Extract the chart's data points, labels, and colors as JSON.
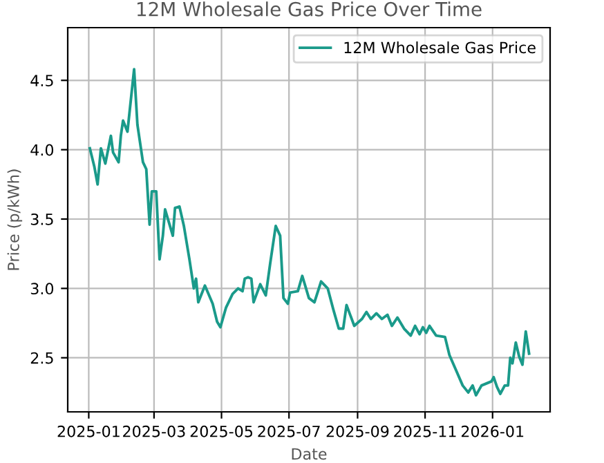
{
  "chart_data": {
    "type": "line",
    "title": "12M Wholesale Gas Price Over Time",
    "xlabel": "Date",
    "ylabel": "Price (p/kWh)",
    "x": [
      "2025-01-02",
      "2025-01-06",
      "2025-01-09",
      "2025-01-12",
      "2025-01-16",
      "2025-01-21",
      "2025-01-23",
      "2025-01-28",
      "2025-01-30",
      "2025-02-01",
      "2025-02-05",
      "2025-02-11",
      "2025-02-14",
      "2025-02-19",
      "2025-02-22",
      "2025-02-25",
      "2025-02-27",
      "2025-03-03",
      "2025-03-06",
      "2025-03-09",
      "2025-03-11",
      "2025-03-18",
      "2025-03-20",
      "2025-03-24",
      "2025-03-28",
      "2025-04-02",
      "2025-04-06",
      "2025-04-08",
      "2025-04-10",
      "2025-04-16",
      "2025-04-23",
      "2025-04-27",
      "2025-04-30",
      "2025-05-05",
      "2025-05-11",
      "2025-05-16",
      "2025-05-20",
      "2025-05-22",
      "2025-05-25",
      "2025-05-28",
      "2025-05-30",
      "2025-06-05",
      "2025-06-10",
      "2025-06-14",
      "2025-06-19",
      "2025-06-23",
      "2025-06-26",
      "2025-06-30",
      "2025-07-02",
      "2025-07-09",
      "2025-07-13",
      "2025-07-19",
      "2025-07-24",
      "2025-07-30",
      "2025-08-05",
      "2025-08-10",
      "2025-08-15",
      "2025-08-19",
      "2025-08-22",
      "2025-08-29",
      "2025-09-05",
      "2025-09-09",
      "2025-09-13",
      "2025-09-18",
      "2025-09-23",
      "2025-09-28",
      "2025-10-02",
      "2025-10-07",
      "2025-10-13",
      "2025-10-19",
      "2025-10-23",
      "2025-10-27",
      "2025-10-30",
      "2025-11-02",
      "2025-11-05",
      "2025-11-11",
      "2025-11-19",
      "2025-11-23",
      "2025-11-29",
      "2025-12-05",
      "2025-12-10",
      "2025-12-14",
      "2025-12-17",
      "2025-12-22",
      "2025-12-31",
      "2026-01-02",
      "2026-01-05",
      "2026-01-08",
      "2026-01-12",
      "2026-01-15",
      "2026-01-17",
      "2026-01-19",
      "2026-01-22",
      "2026-01-25",
      "2026-01-28",
      "2026-01-31",
      "2026-02-03"
    ],
    "series": [
      {
        "name": "12M Wholesale Gas Price",
        "color": "#1a9a8a",
        "values": [
          4.01,
          3.88,
          3.75,
          4.01,
          3.9,
          4.1,
          3.98,
          3.91,
          4.1,
          4.21,
          4.13,
          4.58,
          4.18,
          3.91,
          3.86,
          3.46,
          3.7,
          3.7,
          3.21,
          3.38,
          3.57,
          3.38,
          3.58,
          3.59,
          3.45,
          3.21,
          3.0,
          3.07,
          2.9,
          3.02,
          2.89,
          2.76,
          2.72,
          2.86,
          2.96,
          3.0,
          2.98,
          3.07,
          3.08,
          3.07,
          2.9,
          3.03,
          2.95,
          3.18,
          3.45,
          3.38,
          2.93,
          2.89,
          2.97,
          2.98,
          3.09,
          2.93,
          2.9,
          3.05,
          3.0,
          2.85,
          2.71,
          2.71,
          2.88,
          2.73,
          2.78,
          2.83,
          2.78,
          2.82,
          2.78,
          2.81,
          2.73,
          2.79,
          2.71,
          2.66,
          2.73,
          2.67,
          2.72,
          2.68,
          2.73,
          2.66,
          2.65,
          2.52,
          2.41,
          2.3,
          2.25,
          2.3,
          2.23,
          2.3,
          2.33,
          2.36,
          2.29,
          2.24,
          2.3,
          2.3,
          2.5,
          2.46,
          2.61,
          2.51,
          2.45,
          2.69,
          2.53
        ]
      }
    ],
    "xlim": [
      "2024-12-13",
      "2026-02-22"
    ],
    "ylim": [
      2.11,
      4.88
    ],
    "xticks": [
      "2025-01",
      "2025-03",
      "2025-05",
      "2025-07",
      "2025-09",
      "2025-11",
      "2026-01"
    ],
    "yticks": [
      {
        "value": 2.5,
        "label": "2.5"
      },
      {
        "value": 3.0,
        "label": "3.0"
      },
      {
        "value": 3.5,
        "label": "3.5"
      },
      {
        "value": 4.0,
        "label": "4.0"
      },
      {
        "value": 4.5,
        "label": "4.5"
      }
    ],
    "grid": true,
    "legend": "top right",
    "marker": "none",
    "line_style": "solid"
  }
}
